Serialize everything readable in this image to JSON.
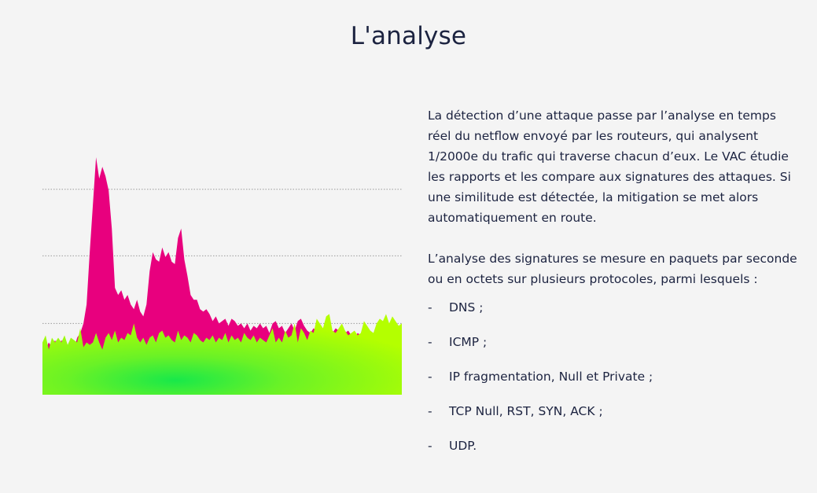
{
  "heading": "L'analyse",
  "paragraphs": [
    "La détection d’une attaque passe par l’analyse en temps réel du netflow envoyé par les routeurs, qui analysent 1/2000e du trafic qui traverse chacun d’eux. Le VAC étudie les rapports et les compare aux signatures des attaques. Si une similitude est détectée, la mitigation se met alors automatiquement en route.",
    "L’analyse des signatures se mesure en paquets par seconde ou en octets sur plusieurs protocoles, parmi lesquels :"
  ],
  "list": {
    "bullet": "-",
    "items": [
      "DNS ;",
      "ICMP ;",
      "IP fragmentation, Null et Private ;",
      "TCP Null, RST, SYN, ACK ;",
      "UDP."
    ]
  },
  "chart_data": {
    "type": "area",
    "grid": true,
    "colors": {
      "attack": "#e8007e",
      "normal": "#7cf020",
      "normal_center": "#18e84a",
      "normal_edge": "#b4ff00"
    },
    "ylim": [
      0,
      100
    ],
    "gridlines": [
      30,
      58.5,
      86.5
    ],
    "series": [
      {
        "values": [
          22,
          19,
          22,
          20,
          23,
          19,
          23,
          21,
          20,
          22,
          19,
          24,
          26,
          30,
          38,
          60,
          80,
          100,
          91,
          96,
          92,
          86,
          70,
          45,
          42,
          44,
          40,
          42,
          38,
          36,
          40,
          35,
          33,
          38,
          52,
          60,
          57,
          56,
          62,
          58,
          60,
          56,
          55,
          66,
          70,
          57,
          50,
          42,
          40,
          40,
          36,
          35,
          36,
          34,
          31,
          33,
          30,
          31,
          32,
          29,
          32,
          31,
          29,
          30,
          28,
          30,
          27,
          29,
          28,
          30,
          28,
          29,
          26,
          30,
          31,
          28,
          29,
          26,
          28,
          30,
          27,
          31,
          32,
          29,
          27,
          26,
          28,
          27,
          24,
          25,
          26,
          25,
          26,
          28,
          27,
          25,
          26,
          27,
          25,
          24,
          26,
          25,
          24,
          23,
          24,
          22,
          24,
          25,
          23,
          22,
          24,
          23,
          22,
          24,
          23
        ]
      },
      {
        "values": [
          22,
          25,
          19,
          24,
          22,
          24,
          22,
          25,
          21,
          24,
          23,
          22,
          28,
          20,
          22,
          21,
          22,
          26,
          22,
          19,
          24,
          26,
          23,
          27,
          22,
          24,
          23,
          26,
          25,
          30,
          24,
          22,
          24,
          21,
          24,
          25,
          22,
          26,
          27,
          24,
          25,
          23,
          22,
          27,
          23,
          25,
          24,
          22,
          26,
          25,
          23,
          22,
          24,
          23,
          25,
          22,
          24,
          23,
          26,
          22,
          25,
          23,
          24,
          22,
          26,
          24,
          23,
          25,
          22,
          24,
          23,
          22,
          25,
          28,
          22,
          24,
          22,
          27,
          24,
          25,
          30,
          22,
          28,
          26,
          23,
          27,
          26,
          32,
          30,
          28,
          33,
          34,
          27,
          26,
          28,
          30,
          27,
          25,
          26,
          27,
          25,
          26,
          31,
          29,
          27,
          26,
          30,
          32,
          31,
          34,
          30,
          33,
          31,
          29,
          30
        ]
      }
    ]
  }
}
